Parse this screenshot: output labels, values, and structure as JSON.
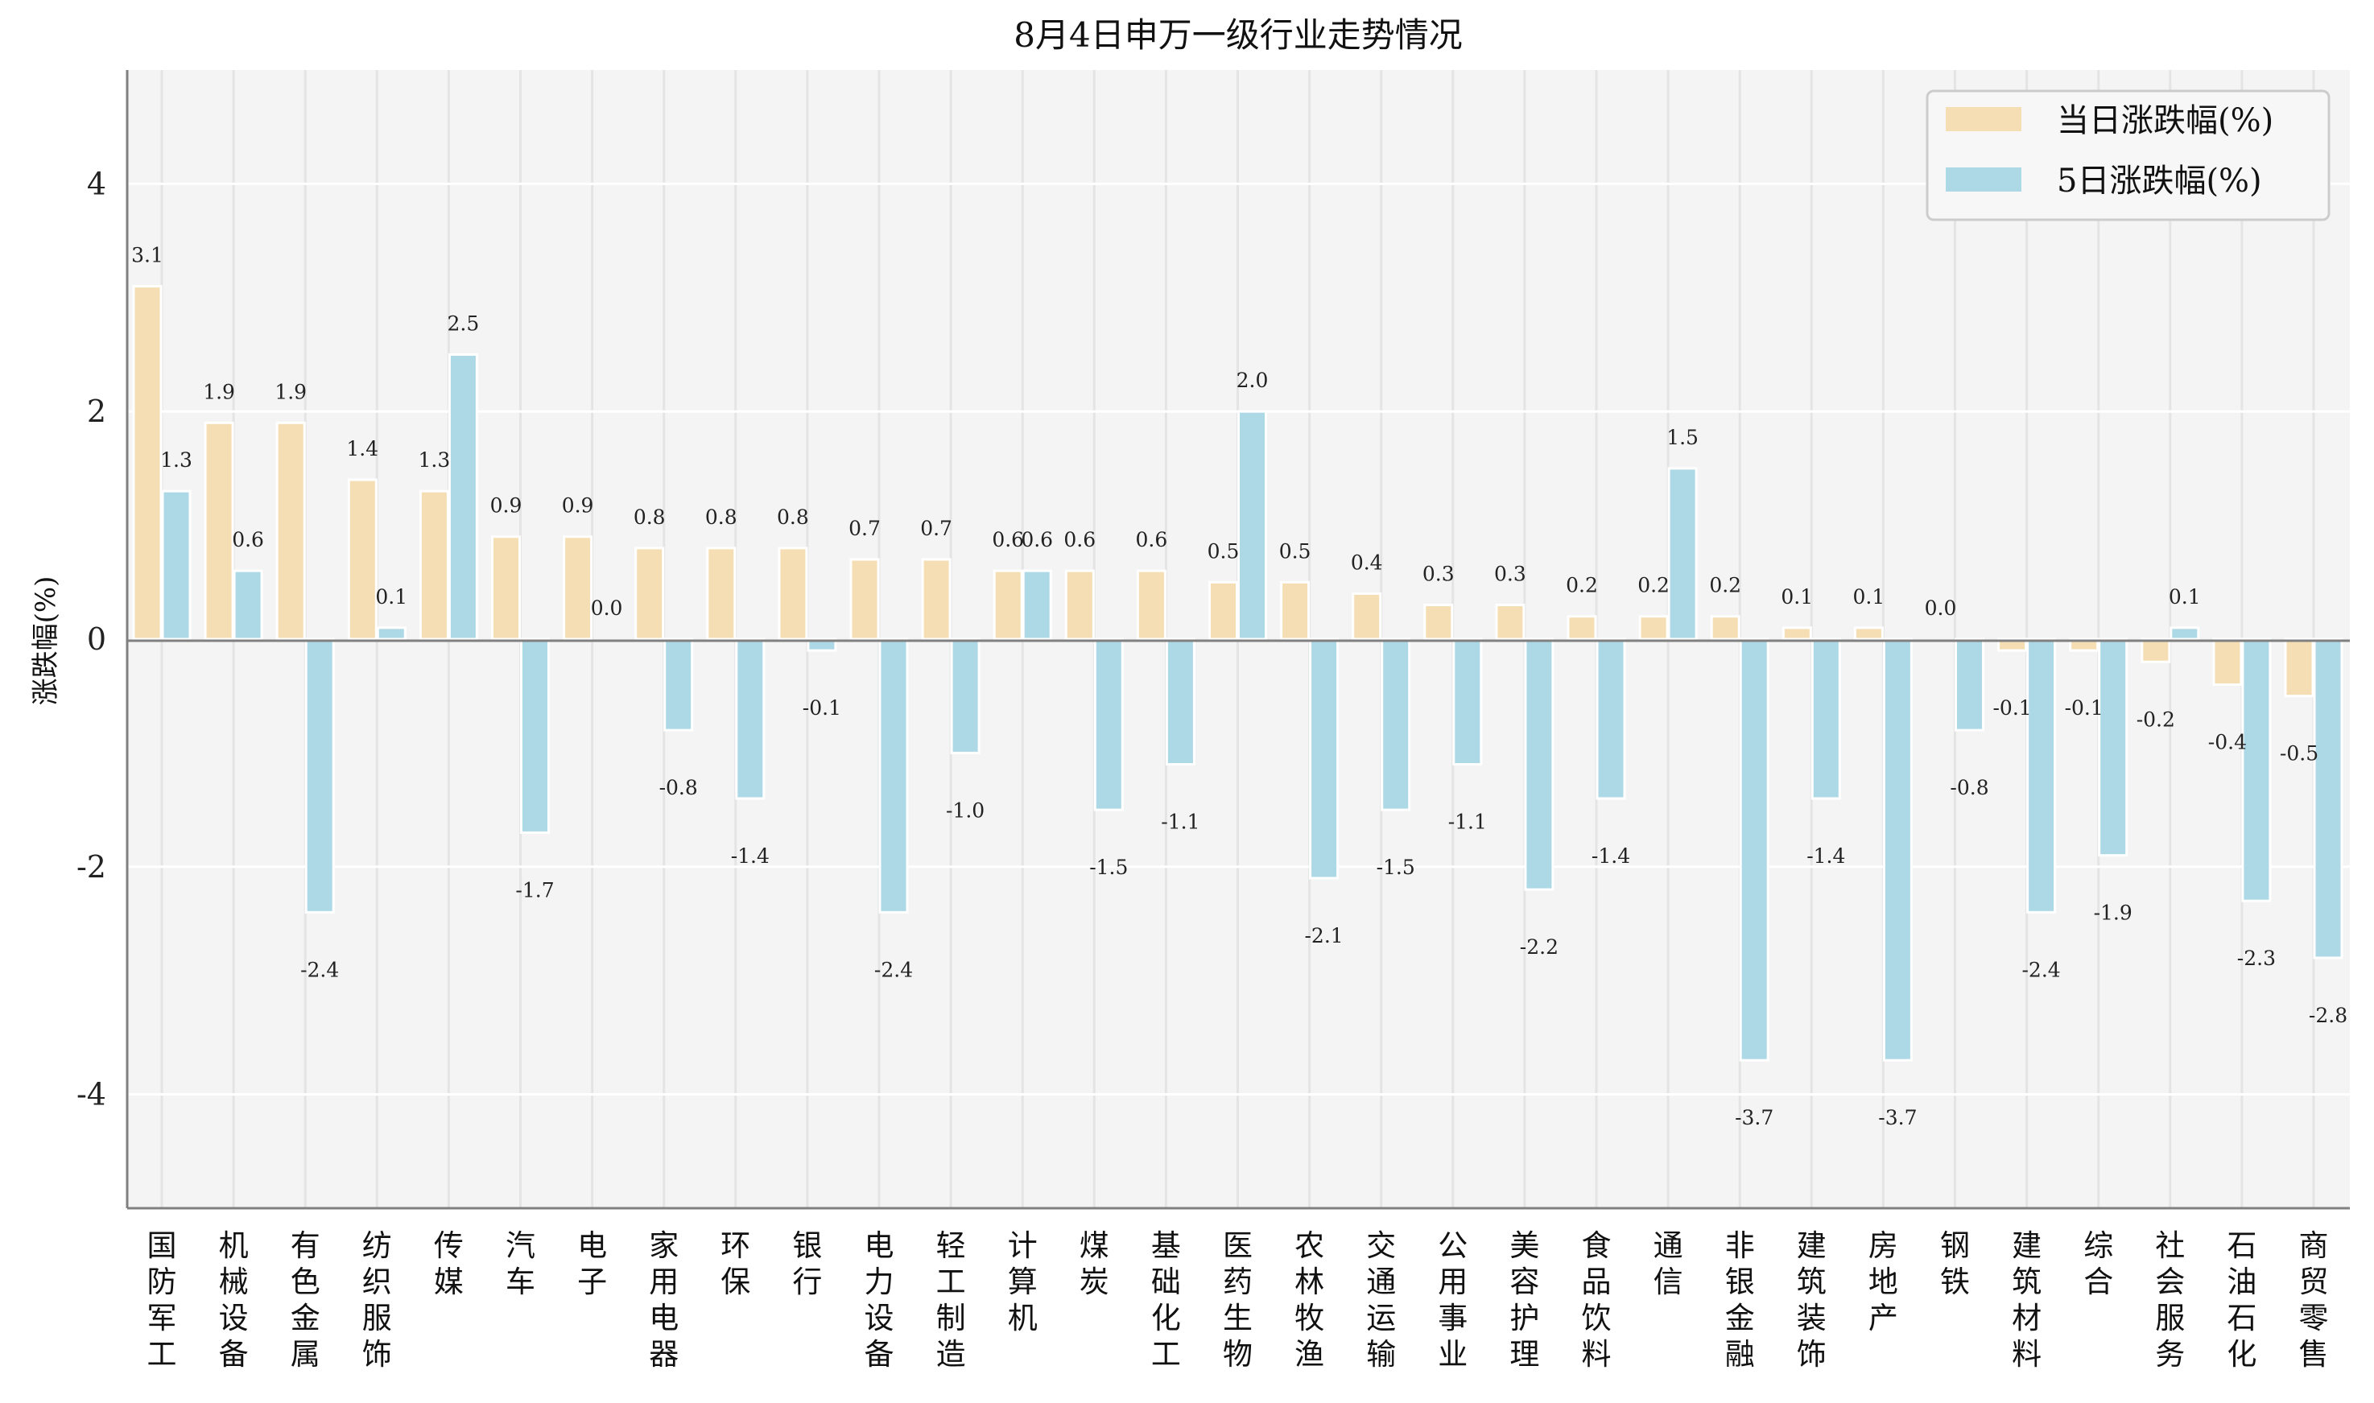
{
  "chart_data": {
    "type": "bar",
    "title": "8月4日申万一级行业走势情况",
    "xlabel": "",
    "ylabel": "涨跌幅(%)",
    "ylim": [
      -5,
      5
    ],
    "yticks": [
      -4,
      -2,
      0,
      2,
      4
    ],
    "grid": true,
    "legend_position": "top-right",
    "categories": [
      "国防军工",
      "机械设备",
      "有色金属",
      "纺织服饰",
      "传媒",
      "汽车",
      "电子",
      "家用电器",
      "环保",
      "银行",
      "电力设备",
      "轻工制造",
      "计算机",
      "煤炭",
      "基础化工",
      "医药生物",
      "农林牧渔",
      "交通运输",
      "公用事业",
      "美容护理",
      "食品饮料",
      "通信",
      "非银金融",
      "建筑装饰",
      "房地产",
      "钢铁",
      "建筑材料",
      "综合",
      "社会服务",
      "石油石化",
      "商贸零售"
    ],
    "series": [
      {
        "name": "当日涨跌幅(%)",
        "color": "#F5DEB3",
        "values": [
          3.1,
          1.9,
          1.9,
          1.4,
          1.3,
          0.9,
          0.9,
          0.8,
          0.8,
          0.8,
          0.7,
          0.7,
          0.6,
          0.6,
          0.6,
          0.5,
          0.5,
          0.4,
          0.3,
          0.3,
          0.2,
          0.2,
          0.2,
          0.1,
          0.1,
          0.0,
          -0.1,
          -0.1,
          -0.2,
          -0.4,
          -0.5
        ]
      },
      {
        "name": "5日涨跌幅(%)",
        "color": "#ADD8E6",
        "values": [
          1.3,
          0.6,
          -2.4,
          0.1,
          2.5,
          -1.7,
          0.0,
          -0.8,
          -1.4,
          -0.1,
          -2.4,
          -1.0,
          0.6,
          -1.5,
          -1.1,
          2.0,
          -2.1,
          -1.5,
          -1.1,
          -2.2,
          -1.4,
          1.5,
          -3.7,
          -1.4,
          -3.7,
          -0.8,
          -2.4,
          -1.9,
          0.1,
          -2.3,
          -2.8
        ]
      }
    ]
  }
}
